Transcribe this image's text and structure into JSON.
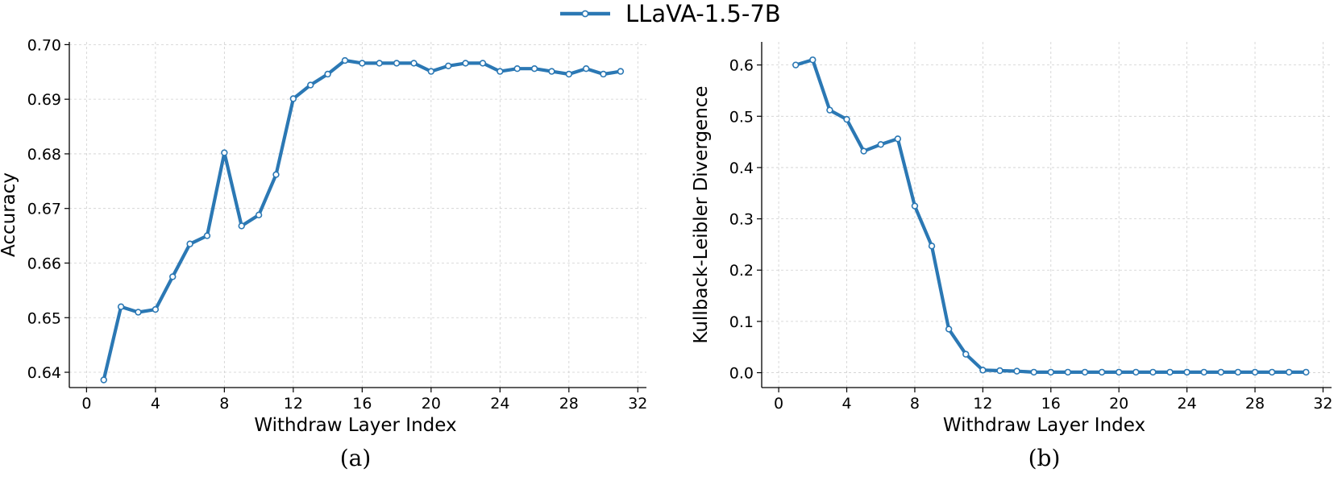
{
  "legend": {
    "label": "LLaVA-1.5-7B"
  },
  "colors": {
    "series": "#2b78b4",
    "grid": "#cfcfcf",
    "axis": "#000000"
  },
  "chart_data": [
    {
      "type": "line",
      "caption": "(a)",
      "xlabel": "Withdraw Layer Index",
      "ylabel": "Accuracy",
      "xlim": [
        -1,
        32.5
      ],
      "ylim": [
        0.6372,
        0.7005
      ],
      "xticks": [
        0,
        4,
        8,
        12,
        16,
        20,
        24,
        28,
        32
      ],
      "xtick_labels": [
        "0",
        "4",
        "8",
        "12",
        "16",
        "20",
        "24",
        "28",
        "32"
      ],
      "yticks": [
        0.64,
        0.65,
        0.66,
        0.67,
        0.68,
        0.69,
        0.7
      ],
      "ytick_labels": [
        "0.64",
        "0.65",
        "0.66",
        "0.67",
        "0.68",
        "0.69",
        "0.70"
      ],
      "grid": true,
      "series": [
        {
          "name": "LLaVA-1.5-7B",
          "x": [
            1,
            2,
            3,
            4,
            5,
            6,
            7,
            8,
            9,
            10,
            11,
            12,
            13,
            14,
            15,
            16,
            17,
            18,
            19,
            20,
            21,
            22,
            23,
            24,
            25,
            26,
            27,
            28,
            29,
            30,
            31
          ],
          "y": [
            0.6386,
            0.652,
            0.651,
            0.6515,
            0.6575,
            0.6635,
            0.665,
            0.6802,
            0.6668,
            0.6688,
            0.6762,
            0.6901,
            0.6926,
            0.6946,
            0.6971,
            0.6966,
            0.6966,
            0.6966,
            0.6966,
            0.6951,
            0.6961,
            0.6966,
            0.6966,
            0.6951,
            0.6956,
            0.6956,
            0.6951,
            0.6946,
            0.6956,
            0.6946,
            0.6951
          ]
        }
      ]
    },
    {
      "type": "line",
      "caption": "(b)",
      "xlabel": "Withdraw Layer Index",
      "ylabel": "Kullback-Leibler Divergence",
      "xlim": [
        -1,
        32.5
      ],
      "ylim": [
        -0.029,
        0.645
      ],
      "xticks": [
        0,
        4,
        8,
        12,
        16,
        20,
        24,
        28,
        32
      ],
      "xtick_labels": [
        "0",
        "4",
        "8",
        "12",
        "16",
        "20",
        "24",
        "28",
        "32"
      ],
      "yticks": [
        0.0,
        0.1,
        0.2,
        0.3,
        0.4,
        0.5,
        0.6
      ],
      "ytick_labels": [
        "0.0",
        "0.1",
        "0.2",
        "0.3",
        "0.4",
        "0.5",
        "0.6"
      ],
      "grid": true,
      "series": [
        {
          "name": "LLaVA-1.5-7B",
          "x": [
            1,
            2,
            3,
            4,
            5,
            6,
            7,
            8,
            9,
            10,
            11,
            12,
            13,
            14,
            15,
            16,
            17,
            18,
            19,
            20,
            21,
            22,
            23,
            24,
            25,
            26,
            27,
            28,
            29,
            30,
            31
          ],
          "y": [
            0.6,
            0.61,
            0.512,
            0.494,
            0.432,
            0.445,
            0.456,
            0.325,
            0.247,
            0.085,
            0.036,
            0.005,
            0.004,
            0.003,
            0.001,
            0.001,
            0.001,
            0.001,
            0.001,
            0.001,
            0.001,
            0.001,
            0.001,
            0.001,
            0.001,
            0.001,
            0.001,
            0.001,
            0.001,
            0.001,
            0.001
          ]
        }
      ]
    }
  ]
}
